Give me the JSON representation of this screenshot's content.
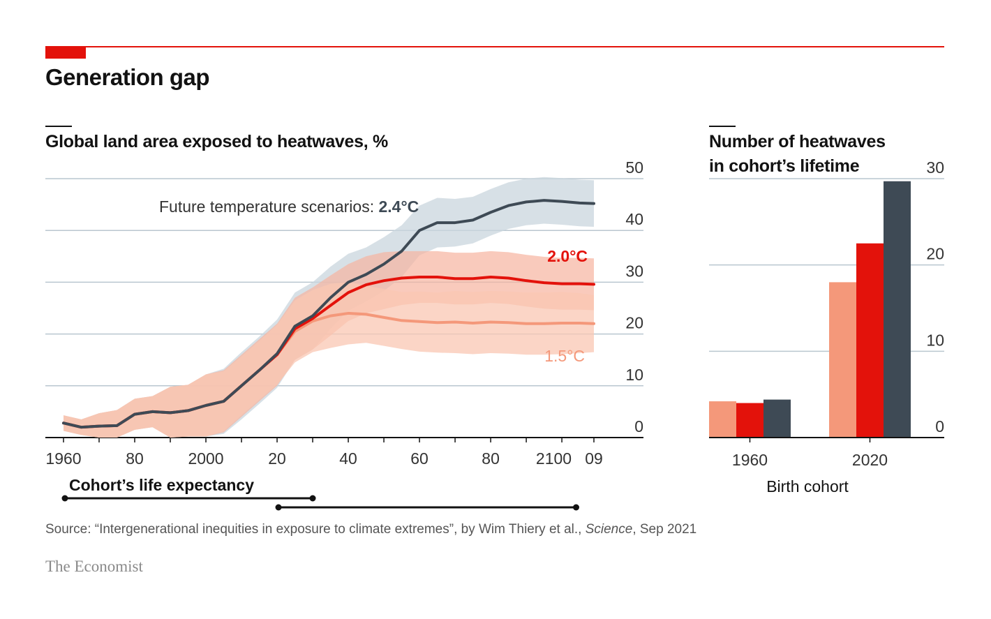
{
  "title": "Generation gap",
  "source": {
    "prefix": "Source: “Intergenerational inequities in exposure to climate extremes”, by Wim Thiery et al., ",
    "journal": "Science",
    "suffix": ", Sep 2021"
  },
  "brand": "The Economist",
  "colors": {
    "c15": "#f4987a",
    "c20": "#e3120b",
    "c24": "#3e4a55",
    "accent": "#e3120b"
  },
  "chart_data": [
    {
      "type": "line",
      "title": "Global land area exposed to heatwaves, %",
      "ylim": [
        0,
        50
      ],
      "yticks": [
        0,
        10,
        20,
        30,
        40,
        50
      ],
      "xlim": [
        1955,
        2125
      ],
      "xticks": [
        {
          "value": 1960,
          "label": "1960"
        },
        {
          "value": 1980,
          "label": "80"
        },
        {
          "value": 2000,
          "label": "2000"
        },
        {
          "value": 2020,
          "label": "20"
        },
        {
          "value": 2040,
          "label": "40"
        },
        {
          "value": 2060,
          "label": "60"
        },
        {
          "value": 2080,
          "label": "80"
        },
        {
          "value": 2100,
          "label": "2100"
        },
        {
          "value": 2109,
          "label": "09"
        }
      ],
      "annotation": {
        "text": "Future temperature scenarios: ",
        "bold": "2.4°C"
      },
      "x": [
        1960,
        1965,
        1970,
        1975,
        1980,
        1985,
        1990,
        1995,
        2000,
        2005,
        2010,
        2015,
        2020,
        2025,
        2030,
        2035,
        2040,
        2045,
        2050,
        2055,
        2060,
        2065,
        2070,
        2075,
        2080,
        2085,
        2090,
        2095,
        2100,
        2105,
        2109
      ],
      "series": [
        {
          "name": "1.5°C",
          "label": "1.5°C",
          "values": [
            2.8,
            2,
            2.2,
            2.3,
            4.5,
            5,
            4.8,
            5.2,
            6.2,
            7,
            10,
            13,
            16,
            20.5,
            22.5,
            23.5,
            24,
            23.8,
            23.2,
            22.6,
            22.4,
            22.2,
            22.3,
            22.1,
            22.3,
            22.2,
            22.0,
            22.0,
            22.1,
            22.1,
            22.0
          ],
          "band": [
            1.5,
            2.5,
            3,
            3,
            5,
            6,
            5.8,
            5.7,
            5.8,
            6,
            6.2,
            6,
            5.5,
            5.5,
            5.8,
            6,
            6,
            6,
            6,
            6,
            5.8,
            5.5
          ]
        },
        {
          "name": "2.0°C",
          "label": "2.0°C",
          "values": [
            2.8,
            2,
            2.2,
            2.3,
            4.5,
            5,
            4.8,
            5.2,
            6.2,
            7,
            10,
            13,
            16,
            21,
            23,
            25.5,
            28,
            29.5,
            30.3,
            30.8,
            31,
            31,
            30.7,
            30.7,
            31,
            30.8,
            30.3,
            29.9,
            29.7,
            29.7,
            29.6
          ],
          "band": [
            1.5,
            2.5,
            3,
            3,
            5,
            6,
            6,
            6,
            6,
            6,
            5.8,
            5.5,
            5.5,
            5.2,
            5.0,
            5.0,
            5.0,
            5.0,
            5.0,
            5.0,
            5.0,
            5.0
          ]
        },
        {
          "name": "2.4°C",
          "label": "2.4°C",
          "values": [
            2.8,
            2,
            2.2,
            2.3,
            4.5,
            5,
            4.8,
            5.2,
            6.2,
            7,
            10,
            13,
            16.2,
            21.5,
            23.5,
            27,
            30,
            31.5,
            33.5,
            36,
            40,
            41.5,
            41.5,
            42,
            43.5,
            44.8,
            45.5,
            45.8,
            45.6,
            45.3,
            45.2
          ],
          "band": [
            1.5,
            2.5,
            3,
            3,
            5,
            6,
            6.3,
            6.5,
            6.6,
            6.5,
            6,
            5.5,
            5.2,
            5.0,
            4.8,
            4.6,
            4.5,
            4.5,
            4.5,
            4.5,
            4.5,
            4.5
          ]
        }
      ],
      "life_expectancy": {
        "label": "Cohort’s life expectancy",
        "spans": [
          {
            "cohort": "1960",
            "start": 1960,
            "end": 2030
          },
          {
            "cohort": "2020",
            "start": 2020,
            "end": 2104
          }
        ]
      }
    },
    {
      "type": "bar",
      "title_lines": [
        "Number of heatwaves",
        "in cohort’s lifetime"
      ],
      "ylim": [
        0,
        30
      ],
      "yticks": [
        0,
        10,
        20,
        30
      ],
      "xlabel": "Birth cohort",
      "categories": [
        "1960",
        "2020"
      ],
      "series": [
        {
          "name": "1.5°C",
          "values": [
            4.2,
            18
          ]
        },
        {
          "name": "2.0°C",
          "values": [
            4.0,
            22.5
          ]
        },
        {
          "name": "2.4°C",
          "values": [
            4.4,
            29.7
          ]
        }
      ]
    }
  ]
}
